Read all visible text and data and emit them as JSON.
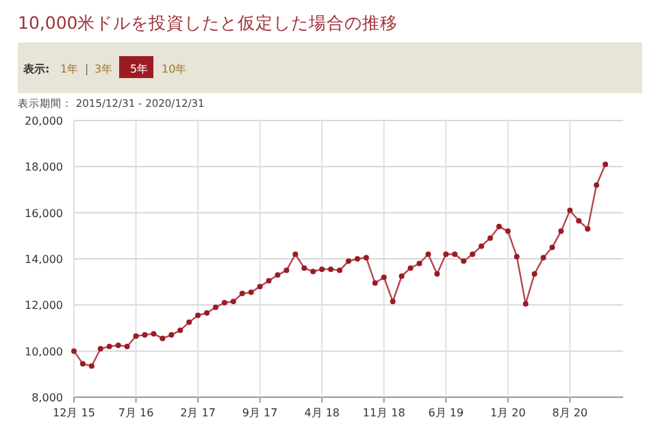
{
  "chart_data": {
    "type": "line",
    "title": "10,000米ドルを投資したと仮定した場合の推移",
    "annotations": [
      "表示:",
      "1年",
      "|",
      "3年",
      "5年",
      "10年",
      "表示期間： 2015/12/31 - 2020/12/31"
    ],
    "x": [
      "2015-12",
      "2016-01",
      "2016-02",
      "2016-03",
      "2016-04",
      "2016-05",
      "2016-06",
      "2016-07",
      "2016-08",
      "2016-09",
      "2016-10",
      "2016-11",
      "2016-12",
      "2017-01",
      "2017-02",
      "2017-03",
      "2017-04",
      "2017-05",
      "2017-06",
      "2017-07",
      "2017-08",
      "2017-09",
      "2017-10",
      "2017-11",
      "2017-12",
      "2018-01",
      "2018-02",
      "2018-03",
      "2018-04",
      "2018-05",
      "2018-06",
      "2018-07",
      "2018-08",
      "2018-09",
      "2018-10",
      "2018-11",
      "2018-12",
      "2019-01",
      "2019-02",
      "2019-03",
      "2019-04",
      "2019-05",
      "2019-06",
      "2019-07",
      "2019-08",
      "2019-09",
      "2019-10",
      "2019-11",
      "2019-12",
      "2020-01",
      "2020-02",
      "2020-03",
      "2020-04",
      "2020-05",
      "2020-06",
      "2020-07",
      "2020-08",
      "2020-09",
      "2020-10",
      "2020-11",
      "2020-12"
    ],
    "series": [
      {
        "color": "#b5454f",
        "values": [
          10000,
          9450,
          9350,
          10100,
          10200,
          10250,
          10200,
          10650,
          10700,
          10750,
          10550,
          10700,
          10900,
          11250,
          11550,
          11650,
          11900,
          12100,
          12150,
          12500,
          12550,
          12800,
          13050,
          13300,
          13500,
          14200,
          13600,
          13450,
          13550,
          13550,
          13500,
          13900,
          14000,
          14050,
          12950,
          13200,
          12150,
          13250,
          13600,
          13800,
          14200,
          13350,
          14200,
          14200,
          13900,
          14200,
          14550,
          14900,
          15400,
          15200,
          14100,
          12050,
          13350,
          14050,
          14500,
          15200,
          16100,
          15650,
          15300,
          17200,
          18100
        ]
      }
    ],
    "marker": "circle",
    "grid": true,
    "xlim": [
      "2015-12",
      "2021-02"
    ],
    "xticks": [
      {
        "value": "2015-12",
        "label": "12月 15"
      },
      {
        "value": "2016-07",
        "label": "7月 16"
      },
      {
        "value": "2017-02",
        "label": "2月 17"
      },
      {
        "value": "2017-09",
        "label": "9月 17"
      },
      {
        "value": "2018-04",
        "label": "4月 18"
      },
      {
        "value": "2018-11",
        "label": "11月 18"
      },
      {
        "value": "2019-06",
        "label": "6月 19"
      },
      {
        "value": "2020-01",
        "label": "1月 20"
      },
      {
        "value": "2020-08",
        "label": "8月 20"
      }
    ],
    "ylim": [
      8000,
      20000
    ],
    "yticks": [
      {
        "value": 8000,
        "label": "8,000"
      },
      {
        "value": 10000,
        "label": "10,000"
      },
      {
        "value": 12000,
        "label": "12,000"
      },
      {
        "value": 14000,
        "label": "14,000"
      },
      {
        "value": 16000,
        "label": "16,000"
      },
      {
        "value": 18000,
        "label": "18,000"
      },
      {
        "value": 20000,
        "label": "20,000"
      }
    ]
  }
}
